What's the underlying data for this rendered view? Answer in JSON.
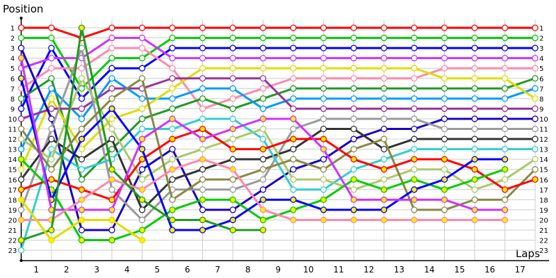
{
  "chart_data": {
    "type": "line",
    "ylabel": "Position",
    "xlabel": "Laps",
    "x": [
      0,
      1,
      2,
      3,
      4,
      5,
      6,
      7,
      8,
      9,
      10,
      11,
      12,
      13,
      14,
      15,
      16,
      17
    ],
    "xtick_labels": [
      "1",
      "2",
      "3",
      "4",
      "5",
      "6",
      "7",
      "8",
      "9",
      "10",
      "11",
      "12",
      "13",
      "14",
      "15",
      "16",
      "17"
    ],
    "ylim": [
      1,
      23
    ],
    "y_inverted": true,
    "ytick_labels": [
      "1",
      "2",
      "3",
      "4",
      "5",
      "6",
      "7",
      "8",
      "9",
      "10",
      "11",
      "12",
      "13",
      "14",
      "15",
      "16",
      "17",
      "18",
      "19",
      "20",
      "21",
      "22",
      "23"
    ],
    "grid": true,
    "series": [
      {
        "color": "#ff0000",
        "marker_fill": "#ffffff",
        "values": [
          1,
          1,
          2,
          1,
          1,
          1,
          1,
          1,
          1,
          1,
          1,
          1,
          1,
          1,
          1,
          1,
          1,
          1
        ]
      },
      {
        "color": "#00cc00",
        "marker_fill": "#ffffff",
        "values": [
          2,
          2,
          7,
          4,
          4,
          2,
          2,
          2,
          2,
          2,
          2,
          2,
          2,
          2,
          2,
          2,
          2,
          2
        ]
      },
      {
        "color": "#0000ff",
        "marker_fill": "#ffffff",
        "values": [
          9,
          3,
          8,
          5,
          5,
          3,
          3,
          3,
          3,
          3,
          3,
          3,
          3,
          3,
          3,
          3,
          3,
          3
        ]
      },
      {
        "color": "#cc33ff",
        "marker_fill": "#ffffff",
        "values": [
          5,
          4,
          4,
          2,
          2,
          4,
          4,
          4,
          4,
          4,
          4,
          4,
          4,
          4,
          4,
          4,
          4,
          4
        ]
      },
      {
        "color": "#ff88aa",
        "marker_fill": "#ffffff",
        "values": [
          7,
          5,
          5,
          3,
          3,
          5,
          9,
          8,
          7,
          6,
          6,
          6,
          6,
          6,
          5,
          5,
          5,
          5
        ]
      },
      {
        "color": "#229922",
        "marker_fill": "#ffffff",
        "values": [
          8,
          6,
          16,
          13,
          10,
          9,
          8,
          9,
          8,
          7,
          7,
          7,
          7,
          7,
          7,
          7,
          7,
          6
        ]
      },
      {
        "color": "#0099ff",
        "marker_fill": "#ffffff",
        "values": [
          13,
          7,
          10,
          6,
          8,
          8,
          7,
          7,
          9,
          8,
          8,
          8,
          8,
          8,
          8,
          8,
          8,
          7
        ]
      },
      {
        "color": "#dddd00",
        "marker_fill": "#ffffff",
        "values": [
          15,
          8,
          13,
          10,
          9,
          7,
          5,
          5,
          5,
          5,
          5,
          5,
          5,
          5,
          6,
          6,
          6,
          8
        ]
      },
      {
        "color": "#993399",
        "marker_fill": "#ffffff",
        "values": [
          10,
          9,
          9,
          7,
          7,
          6,
          6,
          6,
          6,
          9,
          9,
          9,
          9,
          9,
          9,
          9,
          9,
          9
        ]
      },
      {
        "color": "#1a00c0",
        "marker_fill": "#ffffff",
        "values": [
          3,
          10,
          21,
          21,
          15,
          13,
          19,
          19,
          17,
          15,
          14,
          12,
          11,
          11,
          10,
          10,
          10,
          10
        ]
      },
      {
        "color": "#999999",
        "marker_fill": "#ffffff",
        "values": [
          19,
          11,
          3,
          17,
          20,
          17,
          17,
          17,
          16,
          11,
          10,
          10,
          10,
          10,
          11,
          11,
          11,
          11
        ]
      },
      {
        "color": "#333333",
        "marker_fill": "#ffffff",
        "values": [
          16,
          12,
          14,
          12,
          19,
          16,
          15,
          14,
          14,
          13,
          11,
          11,
          13,
          12,
          12,
          12,
          12,
          12
        ]
      },
      {
        "color": "#33cccc",
        "marker_fill": "#ffffff",
        "values": [
          23,
          13,
          15,
          14,
          11,
          11,
          10,
          10,
          12,
          17,
          17,
          15,
          14,
          13,
          13,
          13,
          13,
          13
        ]
      },
      {
        "color": "#aac866",
        "marker_fill": "#ffffff",
        "values": [
          12,
          14,
          6,
          11,
          16,
          14,
          13,
          12,
          11,
          16,
          16,
          17,
          16,
          15,
          15,
          17,
          16,
          14
        ]
      },
      {
        "color": "#888844",
        "marker_fill": "#ffffff",
        "values": [
          11,
          15,
          11,
          8,
          6,
          18,
          16,
          16,
          15,
          14,
          15,
          13,
          12,
          19,
          19,
          18,
          18,
          15
        ]
      },
      {
        "color": "#ff0000",
        "marker_fill": "#ffee00",
        "values": [
          17,
          16,
          17,
          18,
          14,
          12,
          11,
          13,
          13,
          12,
          12,
          14,
          15,
          14,
          14,
          15,
          17,
          16
        ]
      },
      {
        "color": "#00cc00",
        "marker_fill": "#ffee00",
        "values": [
          14,
          17,
          22,
          22,
          21,
          19,
          18,
          18,
          20,
          19,
          18,
          16,
          17,
          16,
          17,
          16,
          15,
          null
        ]
      },
      {
        "color": "#0000ff",
        "marker_fill": "#ffee00",
        "values": [
          6,
          18,
          12,
          9,
          13,
          21,
          21,
          20,
          18,
          18,
          19,
          19,
          19,
          17,
          16,
          14,
          14,
          null
        ]
      },
      {
        "color": "#cc33ff",
        "marker_fill": "#ffee00",
        "values": [
          4,
          19,
          19,
          19,
          12,
          10,
          12,
          11,
          10,
          10,
          13,
          18,
          18,
          18,
          18,
          19,
          19,
          null
        ]
      },
      {
        "color": "#ff88aa",
        "marker_fill": "#ffee00",
        "values": [
          20,
          20,
          18,
          16,
          17,
          15,
          14,
          15,
          19,
          20,
          20,
          20,
          20,
          20,
          20,
          20,
          20,
          null
        ]
      },
      {
        "color": "#229922",
        "marker_fill": "#ffee00",
        "values": [
          22,
          21,
          1,
          15,
          18,
          20,
          20,
          21,
          21,
          null,
          null,
          null,
          null,
          null,
          null,
          null,
          null,
          null
        ]
      },
      {
        "color": "#dddd00",
        "marker_fill": "#ffee00",
        "values": [
          18,
          22,
          20,
          20,
          22,
          null,
          null,
          null,
          null,
          null,
          null,
          null,
          null,
          null,
          null,
          null,
          null,
          null
        ]
      }
    ]
  }
}
